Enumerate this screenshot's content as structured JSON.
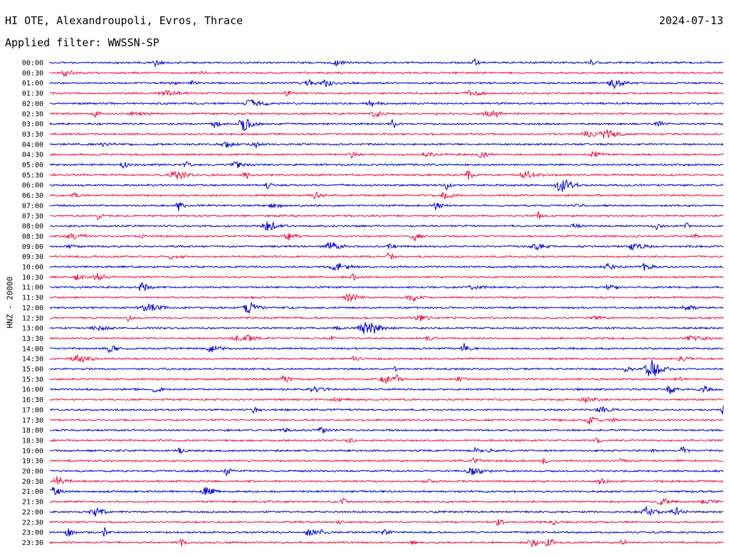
{
  "header": {
    "station": "HI OTE, Alexandroupoli, Evros, Thrace",
    "date": "2024-07-13",
    "filter": "Applied filter: WWSSN-SP"
  },
  "axis": {
    "ylabel": "HNZ - 20000"
  },
  "colors": {
    "even_rows": "#0000cc",
    "odd_rows": "#ee1144"
  },
  "chart_data": {
    "type": "line",
    "title": "HI OTE, Alexandroupoli, Evros, Thrace",
    "ylabel": "HNZ - 20000",
    "rows": [
      "00:00",
      "00:30",
      "01:00",
      "01:30",
      "02:00",
      "02:30",
      "03:00",
      "03:30",
      "04:00",
      "04:30",
      "05:00",
      "05:30",
      "06:00",
      "06:30",
      "07:00",
      "07:30",
      "08:00",
      "08:30",
      "09:00",
      "09:30",
      "10:00",
      "10:30",
      "11:00",
      "11:30",
      "12:00",
      "12:30",
      "13:00",
      "13:30",
      "14:00",
      "14:30",
      "15:00",
      "15:30",
      "16:00",
      "16:30",
      "17:00",
      "17:30",
      "18:00",
      "18:30",
      "19:00",
      "19:30",
      "20:00",
      "20:30",
      "21:00",
      "21:30",
      "22:00",
      "22:30",
      "23:00",
      "23:30"
    ],
    "row_minutes": 30
  }
}
